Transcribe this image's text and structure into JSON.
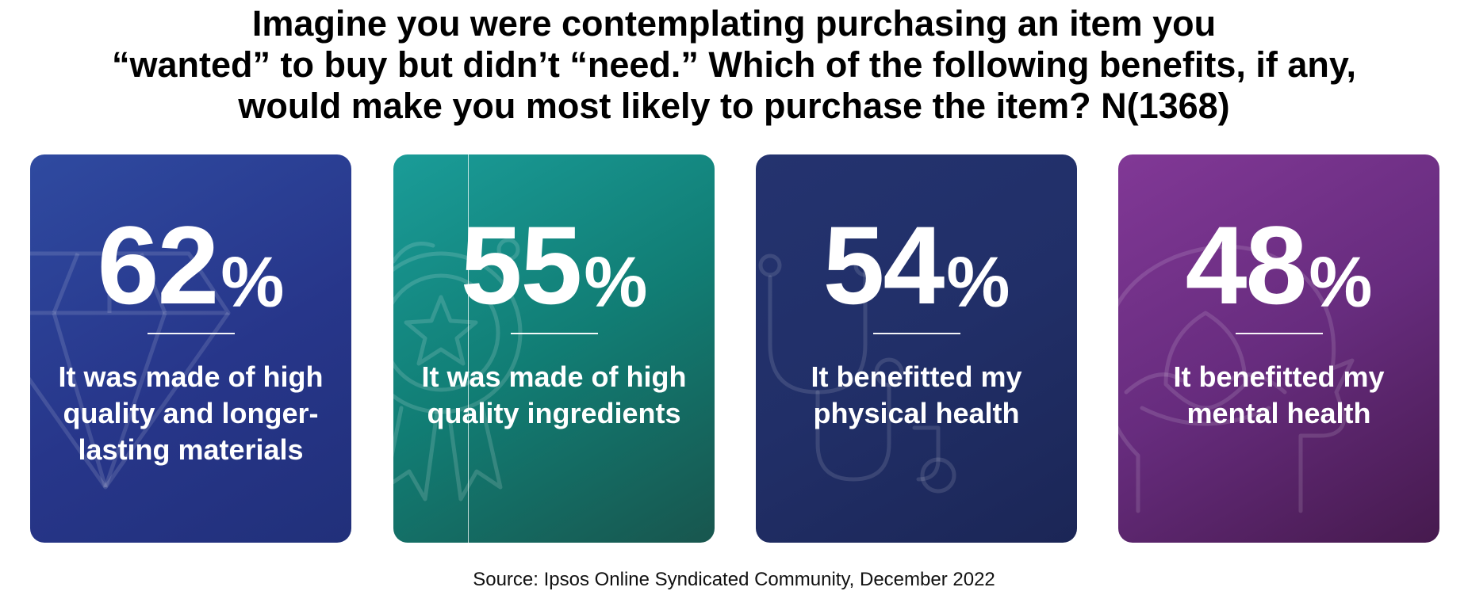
{
  "title_lines": [
    "Imagine you were contemplating purchasing an item you",
    "“wanted” to buy but didn’t “need.” Which of the following benefits, if any,",
    "would make you most likely to purchase the item? N(1368)"
  ],
  "source": "Source: Ipsos Online Syndicated Community, December 2022",
  "cards": [
    {
      "number": "62",
      "percent_sign": "%",
      "label": "It was made of high quality and longer-lasting materials",
      "icon": "diamond-icon",
      "color": "#2b409a"
    },
    {
      "number": "55",
      "percent_sign": "%",
      "label": "It was made of high quality ingredients",
      "icon": "award-ribbon-icon",
      "color": "#12857d"
    },
    {
      "number": "54",
      "percent_sign": "%",
      "label": "It benefitted my physical health",
      "icon": "stethoscope-icon",
      "color": "#222f68"
    },
    {
      "number": "48",
      "percent_sign": "%",
      "label": "It benefitted my mental health",
      "icon": "head-lotus-icon",
      "color": "#6a2d80"
    }
  ],
  "chart_data": {
    "type": "bar",
    "categories": [
      "It was made of high quality and longer-lasting materials",
      "It was made of high quality ingredients",
      "It benefitted my physical health",
      "It benefitted my mental health"
    ],
    "values": [
      62,
      55,
      54,
      48
    ],
    "title": "Imagine you were contemplating purchasing an item you “wanted” to buy but didn’t “need.” Which of the following benefits, if any, would make you most likely to purchase the item? N(1368)"
  }
}
